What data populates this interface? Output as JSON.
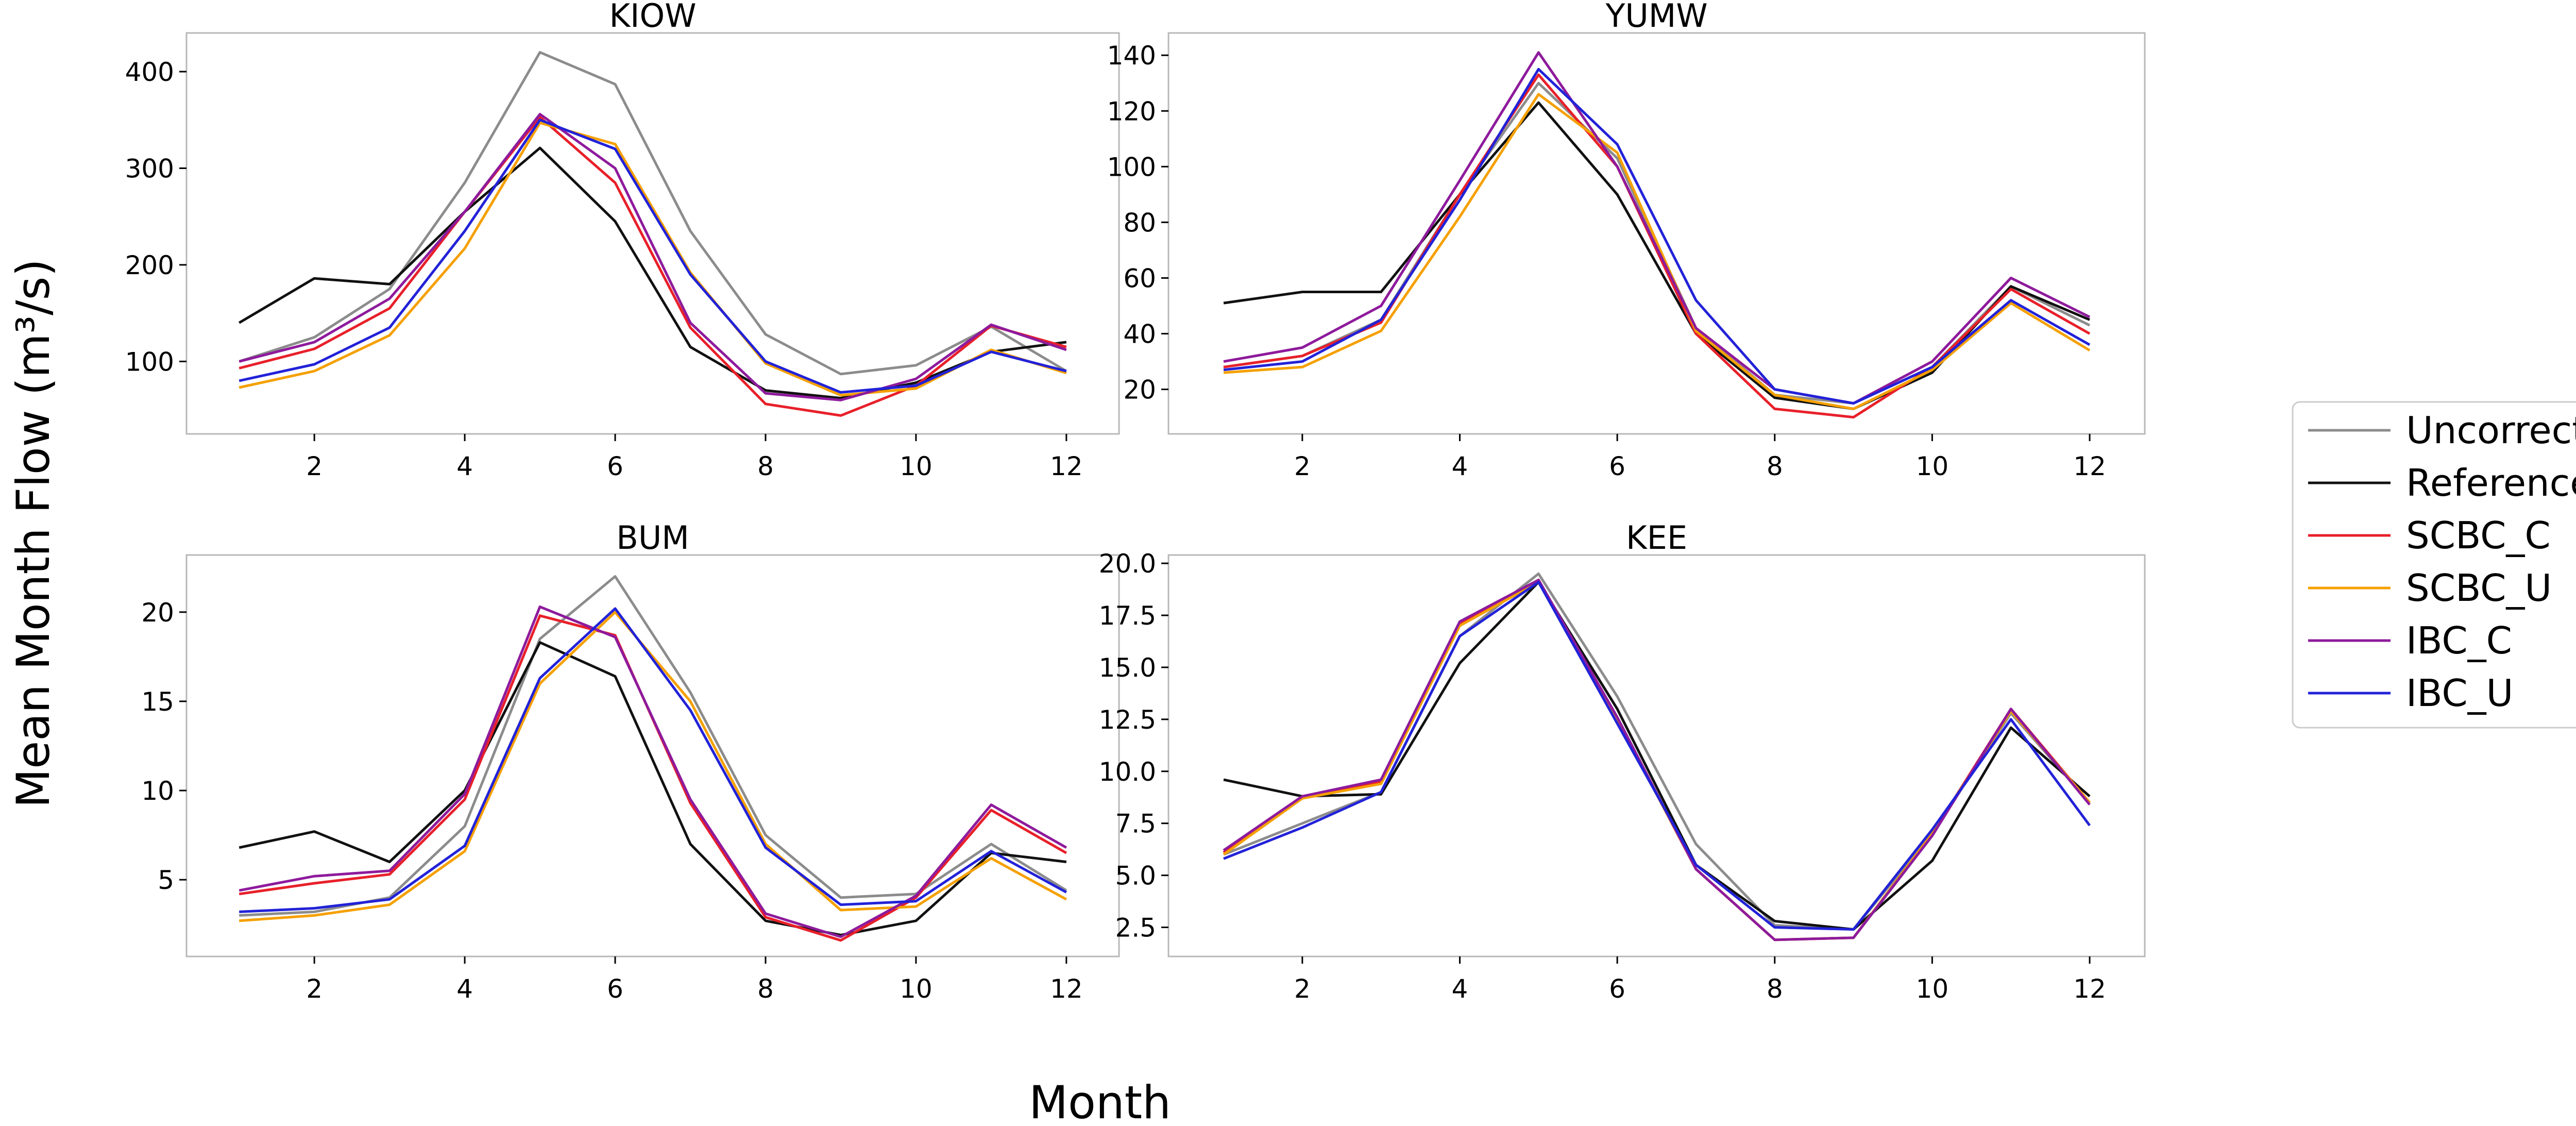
{
  "figure": {
    "ylabel": "Mean Month Flow (m³/s)",
    "xlabel": "Month"
  },
  "series_styles": [
    {
      "name": "Uncorrected",
      "color": "#8c8c8c"
    },
    {
      "name": "Reference",
      "color": "#111111"
    },
    {
      "name": "SCBC_C",
      "color": "#e8202a"
    },
    {
      "name": "SCBC_U",
      "color": "#f5a000"
    },
    {
      "name": "IBC_C",
      "color": "#8e1a9c"
    },
    {
      "name": "IBC_U",
      "color": "#2222d8"
    }
  ],
  "chart_data": [
    {
      "type": "line",
      "title": "KIOW",
      "x": [
        1,
        2,
        3,
        4,
        5,
        6,
        7,
        8,
        9,
        10,
        11,
        12
      ],
      "xticks": [
        2,
        4,
        6,
        8,
        10,
        12
      ],
      "xlim": [
        0.3,
        12.7
      ],
      "ylim": [
        25,
        440
      ],
      "yticks": [
        100,
        200,
        300,
        400
      ],
      "series": [
        {
          "name": "Uncorrected",
          "values": [
            100,
            125,
            175,
            285,
            420,
            387,
            235,
            128,
            87,
            96,
            136,
            90
          ]
        },
        {
          "name": "Reference",
          "values": [
            140,
            186,
            180,
            255,
            321,
            245,
            115,
            70,
            62,
            78,
            110,
            120
          ]
        },
        {
          "name": "SCBC_C",
          "values": [
            93,
            113,
            155,
            255,
            353,
            285,
            135,
            56,
            44,
            75,
            137,
            115
          ]
        },
        {
          "name": "SCBC_U",
          "values": [
            73,
            90,
            127,
            217,
            347,
            325,
            192,
            98,
            65,
            72,
            112,
            88
          ]
        },
        {
          "name": "IBC_C",
          "values": [
            100,
            120,
            165,
            255,
            356,
            300,
            140,
            67,
            60,
            82,
            138,
            112
          ]
        },
        {
          "name": "IBC_U",
          "values": [
            80,
            97,
            135,
            235,
            350,
            320,
            190,
            100,
            68,
            75,
            110,
            90
          ]
        }
      ]
    },
    {
      "type": "line",
      "title": "YUMW",
      "x": [
        1,
        2,
        3,
        4,
        5,
        6,
        7,
        8,
        9,
        10,
        11,
        12
      ],
      "xticks": [
        2,
        4,
        6,
        8,
        10,
        12
      ],
      "xlim": [
        0.3,
        12.7
      ],
      "ylim": [
        4,
        148
      ],
      "yticks": [
        20,
        40,
        60,
        80,
        100,
        120,
        140
      ],
      "series": [
        {
          "name": "Uncorrected",
          "values": [
            28,
            32,
            45,
            90,
            130,
            103,
            42,
            18,
            15,
            28,
            57,
            43
          ]
        },
        {
          "name": "Reference",
          "values": [
            51,
            55,
            55,
            90,
            123,
            90,
            40,
            17,
            13,
            26,
            57,
            45
          ]
        },
        {
          "name": "SCBC_C",
          "values": [
            28,
            32,
            44,
            90,
            133,
            100,
            40,
            13,
            10,
            28,
            56,
            40
          ]
        },
        {
          "name": "SCBC_U",
          "values": [
            26,
            28,
            41,
            82,
            126,
            105,
            41,
            18,
            13,
            27,
            51,
            34
          ]
        },
        {
          "name": "IBC_C",
          "values": [
            30,
            35,
            50,
            95,
            141,
            100,
            42,
            20,
            15,
            30,
            60,
            46
          ]
        },
        {
          "name": "IBC_U",
          "values": [
            27,
            30,
            45,
            88,
            135,
            108,
            52,
            20,
            15,
            28,
            52,
            36
          ]
        }
      ]
    },
    {
      "type": "line",
      "title": "BUM",
      "x": [
        1,
        2,
        3,
        4,
        5,
        6,
        7,
        8,
        9,
        10,
        11,
        12
      ],
      "xticks": [
        2,
        4,
        6,
        8,
        10,
        12
      ],
      "xlim": [
        0.3,
        12.7
      ],
      "ylim": [
        0.7,
        23.2
      ],
      "yticks": [
        5,
        10,
        15,
        20
      ],
      "series": [
        {
          "name": "Uncorrected",
          "values": [
            3,
            3.2,
            4,
            8,
            18.5,
            22,
            15.5,
            7.5,
            4,
            4.2,
            7,
            4.4
          ]
        },
        {
          "name": "Reference",
          "values": [
            6.8,
            7.7,
            6,
            10,
            18.3,
            16.4,
            7,
            2.7,
            1.9,
            2.7,
            6.5,
            6
          ]
        },
        {
          "name": "SCBC_C",
          "values": [
            4.2,
            4.8,
            5.3,
            9.5,
            19.8,
            18.7,
            9.3,
            2.9,
            1.6,
            4,
            8.9,
            6.5
          ]
        },
        {
          "name": "SCBC_U",
          "values": [
            2.7,
            3,
            3.6,
            6.6,
            16,
            20,
            15,
            7,
            3.3,
            3.5,
            6.2,
            3.9
          ]
        },
        {
          "name": "IBC_C",
          "values": [
            4.4,
            5.2,
            5.5,
            9.8,
            20.3,
            18.6,
            9.5,
            3.1,
            1.8,
            4.1,
            9.2,
            6.8
          ]
        },
        {
          "name": "IBC_U",
          "values": [
            3.2,
            3.4,
            3.9,
            6.9,
            16.3,
            20.2,
            14.5,
            6.8,
            3.6,
            3.8,
            6.6,
            4.3
          ]
        }
      ]
    },
    {
      "type": "line",
      "title": "KEE",
      "x": [
        1,
        2,
        3,
        4,
        5,
        6,
        7,
        8,
        9,
        10,
        11,
        12
      ],
      "xticks": [
        2,
        4,
        6,
        8,
        10,
        12
      ],
      "xlim": [
        0.3,
        12.7
      ],
      "ylim": [
        1.1,
        20.4
      ],
      "yticks": [
        2.5,
        5.0,
        7.5,
        10.0,
        12.5,
        15.0,
        17.5,
        20.0
      ],
      "ytick_labels": [
        "2.5",
        "5.0",
        "7.5",
        "10.0",
        "12.5",
        "15.0",
        "17.5",
        "20.0"
      ],
      "series": [
        {
          "name": "Uncorrected",
          "values": [
            6,
            7.5,
            9,
            16.5,
            19.5,
            13.6,
            6.5,
            2.6,
            2.4,
            7,
            12.8,
            8.5
          ]
        },
        {
          "name": "Reference",
          "values": [
            9.6,
            8.8,
            8.9,
            15.2,
            19.1,
            13,
            5.5,
            2.8,
            2.4,
            5.7,
            12.1,
            8.8
          ]
        },
        {
          "name": "SCBC_C",
          "values": [
            6.1,
            8.8,
            9.5,
            17.1,
            19.2,
            12.5,
            5.3,
            1.9,
            2,
            7,
            13,
            8.5
          ]
        },
        {
          "name": "SCBC_U",
          "values": [
            6,
            8.7,
            9.4,
            17,
            19.1,
            12.5,
            5.3,
            1.9,
            2,
            7,
            12.9,
            8.5
          ]
        },
        {
          "name": "IBC_C",
          "values": [
            6.2,
            8.8,
            9.6,
            17.2,
            19.2,
            12.6,
            5.3,
            1.9,
            2,
            6.9,
            13,
            8.4
          ]
        },
        {
          "name": "IBC_U",
          "values": [
            5.8,
            7.3,
            9,
            16.5,
            19.1,
            12.3,
            5.5,
            2.5,
            2.4,
            7.2,
            12.5,
            7.4
          ]
        }
      ]
    }
  ]
}
